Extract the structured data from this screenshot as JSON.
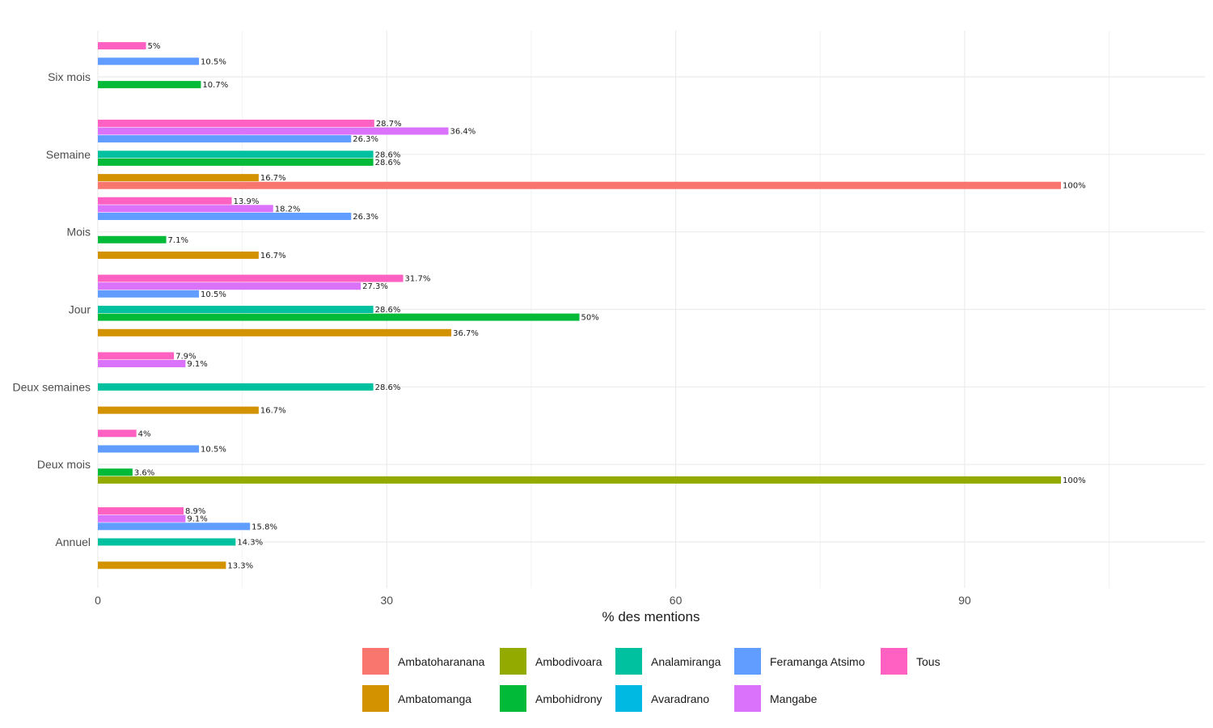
{
  "chart_data": {
    "type": "bar",
    "orientation": "horizontal",
    "title": "",
    "xlabel": "% des mentions",
    "ylabel": "",
    "xlim": [
      0,
      114
    ],
    "xticks": [
      0,
      30,
      60,
      90
    ],
    "grid": true,
    "legend_position": "bottom",
    "categories": [
      "Six mois",
      "Semaine",
      "Mois",
      "Jour",
      "Deux semaines",
      "Deux mois",
      "Annuel"
    ],
    "series": [
      {
        "name": "Ambatoharanana",
        "color": "#F8766D",
        "values": [
          null,
          100,
          null,
          null,
          null,
          null,
          null
        ],
        "labels": [
          null,
          "100%",
          null,
          null,
          null,
          null,
          null
        ]
      },
      {
        "name": "Ambatomanga",
        "color": "#D39200",
        "values": [
          null,
          16.7,
          16.7,
          36.7,
          16.7,
          null,
          13.3
        ],
        "labels": [
          null,
          "16.7%",
          "16.7%",
          "36.7%",
          "16.7%",
          null,
          "13.3%"
        ]
      },
      {
        "name": "Ambodivoara",
        "color": "#93AA00",
        "values": [
          null,
          null,
          null,
          null,
          null,
          100,
          null
        ],
        "labels": [
          null,
          null,
          null,
          null,
          null,
          "100%",
          null
        ]
      },
      {
        "name": "Ambohidrony",
        "color": "#00BA38",
        "values": [
          10.7,
          28.6,
          7.1,
          50,
          null,
          3.6,
          null
        ],
        "labels": [
          "10.7%",
          "28.6%",
          "7.1%",
          "50%",
          null,
          "3.6%",
          null
        ]
      },
      {
        "name": "Analamiranga",
        "color": "#00C19F",
        "values": [
          null,
          28.6,
          null,
          28.6,
          28.6,
          null,
          14.3
        ],
        "labels": [
          null,
          "28.6%",
          null,
          "28.6%",
          "28.6%",
          null,
          "14.3%"
        ]
      },
      {
        "name": "Avaradrano",
        "color": "#00B9E3",
        "values": [
          null,
          null,
          null,
          null,
          null,
          null,
          null
        ],
        "labels": [
          null,
          null,
          null,
          null,
          null,
          null,
          null
        ]
      },
      {
        "name": "Feramanga Atsimo",
        "color": "#619CFF",
        "values": [
          10.5,
          26.3,
          26.3,
          10.5,
          null,
          10.5,
          15.8
        ],
        "labels": [
          "10.5%",
          "26.3%",
          "26.3%",
          "10.5%",
          null,
          "10.5%",
          "15.8%"
        ]
      },
      {
        "name": "Mangabe",
        "color": "#DB72FB",
        "values": [
          null,
          36.4,
          18.2,
          27.3,
          9.1,
          null,
          9.1
        ],
        "labels": [
          null,
          "36.4%",
          "18.2%",
          "27.3%",
          "9.1%",
          null,
          "9.1%"
        ]
      },
      {
        "name": "Tous",
        "color": "#FF61C3",
        "values": [
          5,
          28.7,
          13.9,
          31.7,
          7.9,
          4,
          8.9
        ],
        "labels": [
          "5%",
          "28.7%",
          "13.9%",
          "31.7%",
          "7.9%",
          "4%",
          "8.9%"
        ]
      }
    ],
    "legend_order": [
      "Ambatoharanana",
      "Ambodivoara",
      "Analamiranga",
      "Feramanga Atsimo",
      "Tous",
      "Ambatomanga",
      "Ambohidrony",
      "Avaradrano",
      "Mangabe"
    ]
  }
}
